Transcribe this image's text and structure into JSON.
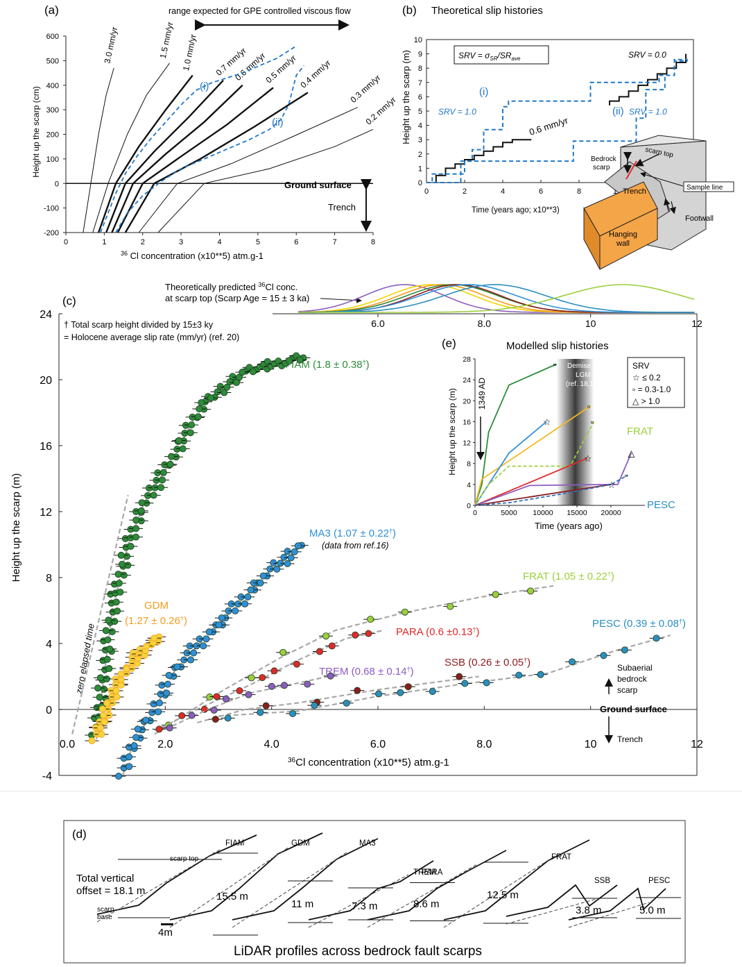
{
  "colors": {
    "axis": "#222222",
    "dashed_blue": "#1f77c8",
    "guide_grey": "#9a9a9a",
    "FIAM": "#2e8b3a",
    "GDM": "#f59a1e",
    "MA3": "#2f8fd8",
    "FRAT": "#9ccf3a",
    "PARA": "#e02a2a",
    "TREM": "#8d5cc0",
    "SSB": "#8b1d1d",
    "PESC": "#2a8fc0",
    "block_orange": "#f4a548",
    "block_grey": "#d4d4d4"
  },
  "panel_a": {
    "label": "(a)",
    "header_text": "range expected for GPE controlled viscous flow",
    "ylabel": "Height up the scarp (cm)",
    "xlabel_pre": "36",
    "xlabel_main": " Cl concentration (x10**5) atm.g-1",
    "ground_label": "Ground surface",
    "trench_label": "Trench",
    "i_label": "(i)",
    "ii_label": "(ii)",
    "xticks": [
      0,
      1,
      2,
      3,
      4,
      5,
      6,
      7,
      8
    ],
    "yticks": [
      -200,
      -100,
      0,
      100,
      200,
      300,
      400,
      500,
      600
    ],
    "xlim": [
      0,
      8
    ],
    "ylim": [
      -200,
      600
    ],
    "rate_curves": [
      {
        "label": "3.0 mm/yr",
        "x": [
          0.45,
          0.65,
          0.85,
          1.05,
          1.25
        ],
        "y": [
          -200,
          0,
          200,
          360,
          470
        ],
        "bold": false
      },
      {
        "label": "1.5 mm/yr",
        "x": [
          0.7,
          1.1,
          1.6,
          2.1,
          2.7
        ],
        "y": [
          -200,
          0,
          200,
          360,
          490
        ],
        "bold": false
      },
      {
        "label": "1.0 mm/yr",
        "x": [
          0.85,
          1.3,
          1.9,
          2.6,
          3.3
        ],
        "y": [
          -200,
          0,
          150,
          300,
          440
        ],
        "bold": true
      },
      {
        "label": "0.7 mm/yr",
        "x": [
          1.05,
          1.55,
          2.3,
          3.2,
          4.1
        ],
        "y": [
          -200,
          0,
          130,
          270,
          420
        ],
        "bold": true
      },
      {
        "label": "0.6 mm/yr",
        "x": [
          1.2,
          1.75,
          2.6,
          3.6,
          4.6
        ],
        "y": [
          -200,
          0,
          120,
          250,
          400
        ],
        "bold": true
      },
      {
        "label": "0.5 mm/yr",
        "x": [
          1.35,
          2.0,
          3.0,
          4.2,
          5.4
        ],
        "y": [
          -200,
          0,
          110,
          240,
          390
        ],
        "bold": true
      },
      {
        "label": "0.4 mm/yr",
        "x": [
          1.55,
          2.3,
          3.5,
          4.9,
          6.3
        ],
        "y": [
          -200,
          0,
          100,
          230,
          370
        ],
        "bold": true
      },
      {
        "label": "0.3 mm/yr",
        "x": [
          1.9,
          2.9,
          4.3,
          5.9,
          7.6
        ],
        "y": [
          -200,
          0,
          80,
          190,
          310
        ],
        "bold": false
      },
      {
        "label": "0.2 mm/yr",
        "x": [
          2.4,
          3.6,
          5.3,
          7.0,
          8.0
        ],
        "y": [
          -200,
          0,
          60,
          150,
          220
        ],
        "bold": false
      }
    ],
    "dashed_i": {
      "x": [
        0.9,
        1.1,
        1.3,
        1.55,
        1.85,
        2.2,
        2.6,
        3.0,
        3.4,
        3.8,
        4.2,
        4.6,
        4.9,
        5.2,
        5.5,
        5.8,
        6.0
      ],
      "y": [
        -200,
        -120,
        -40,
        40,
        110,
        180,
        250,
        320,
        380,
        410,
        430,
        450,
        470,
        490,
        510,
        540,
        560
      ]
    },
    "dashed_ii": {
      "x": [
        1.3,
        1.6,
        2.0,
        2.5,
        3.0,
        3.6,
        4.2,
        4.8,
        5.3,
        5.6,
        5.8,
        5.9,
        6.0,
        6.2
      ],
      "y": [
        -200,
        -120,
        -50,
        10,
        60,
        100,
        140,
        180,
        220,
        260,
        320,
        380,
        440,
        480
      ]
    }
  },
  "panel_b": {
    "label": "(b)",
    "title": "Theoretical slip histories",
    "formula_pre": "SRV = σ",
    "formula_sub1": "SR",
    "formula_mid": "/SR",
    "formula_sub2": "ave",
    "srv_top_label": "SRV = 0.0",
    "srv_i_label": "SRV = 1.0",
    "srv_ii_label": "SRV = 1.0",
    "i_label": "(i)",
    "ii_label": "(ii)",
    "rate_label": "0.6 mm/yr",
    "ylabel": "Height up the scarp (m)",
    "xlabel": "Time (years ago; x10**3)",
    "xticks": [
      0,
      2,
      4,
      6,
      8,
      10
    ],
    "yticks": [
      0,
      1,
      2,
      3,
      4,
      5,
      6,
      7,
      8,
      9,
      10
    ],
    "xlim": [
      0,
      14
    ],
    "ylim": [
      0,
      10
    ],
    "black_step_a": {
      "x": [
        0.5,
        0.5,
        1.0,
        1.0,
        1.5,
        1.5,
        2.0,
        2.0,
        2.5,
        2.5,
        3.0,
        3.0,
        3.5,
        3.5,
        4.0,
        4.0,
        4.5,
        4.5,
        5.0,
        5.0,
        5.5,
        5.5
      ],
      "y": [
        0,
        0.5,
        0.5,
        1.0,
        1.0,
        1.3,
        1.3,
        1.6,
        1.6,
        1.9,
        1.9,
        2.2,
        2.2,
        2.5,
        2.5,
        2.8,
        2.8,
        3.0,
        3.0,
        3.0,
        3.0,
        3.0
      ]
    },
    "black_step_b": {
      "x": [
        9.6,
        9.6,
        10.1,
        10.1,
        10.6,
        10.6,
        11.1,
        11.1,
        11.6,
        11.6,
        12.1,
        12.1,
        12.6,
        12.6,
        13.1,
        13.1,
        13.6,
        13.6
      ],
      "y": [
        5.4,
        5.7,
        5.7,
        6.0,
        6.0,
        6.4,
        6.4,
        6.8,
        6.8,
        7.2,
        7.2,
        7.6,
        7.6,
        8.0,
        8.0,
        8.4,
        8.4,
        9.0
      ]
    },
    "blue_step_i": {
      "x": [
        0,
        0.3,
        0.3,
        2.0,
        2.0,
        2.4,
        2.4,
        3.0,
        3.0,
        4.0,
        4.0,
        4.3,
        4.3,
        8.6,
        8.6,
        12.2,
        12.2,
        13.0,
        13.0,
        13.7
      ],
      "y": [
        0,
        0,
        0.6,
        0.6,
        1.5,
        1.5,
        2.3,
        2.3,
        3.7,
        3.7,
        5.3,
        5.3,
        5.7,
        5.7,
        7.0,
        7.0,
        7.5,
        7.5,
        8.5,
        8.5
      ]
    },
    "blue_step_ii": {
      "x": [
        0,
        1.8,
        1.8,
        4.3,
        4.3,
        7.7,
        7.7,
        11.0,
        11.0,
        11.5,
        11.5,
        12.5,
        12.5,
        13.0,
        13.0,
        13.7
      ],
      "y": [
        0,
        0,
        1.5,
        1.5,
        1.5,
        1.5,
        2.9,
        2.9,
        4.5,
        4.5,
        6.5,
        6.5,
        7.5,
        7.5,
        8.6,
        8.6
      ]
    },
    "block_labels": {
      "bedrock": "Bedrock",
      "scarp": "scarp",
      "scarp_top": "scarp top",
      "trench": "Trench",
      "sample_line": "Sample line",
      "footwall": "Footwall",
      "hanging": "Hanging",
      "wall": "wall"
    }
  },
  "panel_c": {
    "label": "(c)",
    "curves_caption": "Theoretically predicted",
    "curves_caption_sup": "36",
    "curves_caption_rest": "Cl conc.",
    "curves_caption2": "at scarp top (Scarp Age = 15 ± 3 ka)",
    "note1": "† Total scarp height divided by 15±3 ky",
    "note2": "= Holocene average slip rate (mm/yr) (ref. 20)",
    "ylabel": "Height up the scarp (m)",
    "xlabel_pre": "36",
    "xlabel_main": "Cl concentration (x10**5) atm.g-1",
    "zero_label": "zero elapsed time",
    "ground_label": "Ground surface",
    "trench_label": "Trench",
    "subaerial_1": "Subaerial",
    "subaerial_2": "bedrock",
    "subaerial_3": "scarp",
    "ma3_note": "(data from ref.16)",
    "xticks_bottom": [
      "0.0",
      "2.0",
      "4.0",
      "6.0",
      "8.0",
      "10",
      "12"
    ],
    "xticks_top": [
      "6.0",
      "8.0",
      "10",
      "12"
    ],
    "yticks": [
      -4,
      0,
      4,
      8,
      12,
      16,
      20,
      24
    ],
    "xlim": [
      0,
      12
    ],
    "ylim": [
      -4,
      24
    ],
    "site_labels": [
      {
        "key": "FIAM",
        "text": "FIAM (1.8 ± 0.38",
        "dagger": "†",
        "close": ")"
      },
      {
        "key": "GDM",
        "text": "GDM",
        "dagger": "",
        "close": ""
      },
      {
        "key": "GDM2",
        "text": "(1.27 ± 0.26",
        "dagger": "†",
        "close": ")"
      },
      {
        "key": "MA3",
        "text": "MA3 (1.07 ± 0.22",
        "dagger": "†",
        "close": ")"
      },
      {
        "key": "FRAT",
        "text": "FRAT (1.05 ± 0.22",
        "dagger": "†",
        "close": ")"
      },
      {
        "key": "PARA",
        "text": "PARA (0.6 ±0.13",
        "dagger": "†",
        "close": ")"
      },
      {
        "key": "PESC",
        "text": "PESC (0.39 ± 0.08",
        "dagger": "†",
        "close": ")"
      },
      {
        "key": "TREM",
        "text": "TREM (0.68 ± 0.14",
        "dagger": "†",
        "close": ")"
      },
      {
        "key": "SSB",
        "text": "SSB (0.26 ± 0.05",
        "dagger": "†",
        "close": ")"
      }
    ],
    "gaussians": [
      {
        "color": "#8d5cc0",
        "mu": 6.5,
        "sd": 0.75
      },
      {
        "color": "#f2d400",
        "mu": 7.0,
        "sd": 0.8
      },
      {
        "color": "#f59a1e",
        "mu": 7.2,
        "sd": 0.8
      },
      {
        "color": "#2e8b3a",
        "mu": 7.4,
        "sd": 0.85
      },
      {
        "color": "#8b1d1d",
        "mu": 7.5,
        "sd": 0.8
      },
      {
        "color": "#2f8fd8",
        "mu": 7.7,
        "sd": 0.9
      },
      {
        "color": "#2a8fc0",
        "mu": 8.2,
        "sd": 0.95
      },
      {
        "color": "#9ccf3a",
        "mu": 10.6,
        "sd": 1.1
      }
    ]
  },
  "panel_e": {
    "label": "(e)",
    "title": "Modelled slip histories",
    "lgm_1": "Demise of",
    "lgm_2": "LGM",
    "lgm_3": "(ref. 18,19)",
    "ad_label": "1349 AD",
    "legend_title": "SRV",
    "legend_star": "≤ 0.2",
    "legend_square": "= 0.3-1.0",
    "legend_triangle": "> 1.0",
    "frat_label": "FRAT",
    "pesc_label": "PESC",
    "ylabel": "Height up the scarp (m)",
    "xlabel": "Time (years ago)",
    "xticks": [
      0,
      5000,
      10000,
      15000,
      20000
    ],
    "yticks": [
      0,
      4,
      8,
      12,
      16,
      20,
      24,
      28
    ],
    "xlim": [
      0,
      25000
    ],
    "ylim": [
      0,
      28
    ],
    "lines": [
      {
        "color": "#2e8b3a",
        "dash": false,
        "x": [
          0,
          1000,
          2000,
          5000,
          12000
        ],
        "y": [
          0,
          4,
          14,
          23,
          27
        ],
        "end": "square"
      },
      {
        "color": "#f5b81e",
        "dash": false,
        "x": [
          0,
          1000,
          17000
        ],
        "y": [
          0,
          5,
          19
        ],
        "end": "square"
      },
      {
        "color": "#2f8fd8",
        "dash": false,
        "x": [
          0,
          2000,
          5000,
          10500
        ],
        "y": [
          0,
          4,
          10,
          16
        ],
        "end": "star"
      },
      {
        "color": "#9ccf3a",
        "dash": true,
        "x": [
          0,
          2000,
          5000,
          14000,
          17500
        ],
        "y": [
          0,
          4,
          7.5,
          7.5,
          16
        ],
        "end": "square"
      },
      {
        "color": "#e02a2a",
        "dash": false,
        "x": [
          0,
          16500
        ],
        "y": [
          0,
          9
        ],
        "end": "star"
      },
      {
        "color": "#8d5cc0",
        "dash": false,
        "x": [
          0,
          8000,
          20000,
          21000,
          23000
        ],
        "y": [
          0,
          3.8,
          4.0,
          4.0,
          10
        ],
        "end": "triangle"
      },
      {
        "color": "#8b1d1d",
        "dash": false,
        "x": [
          0,
          20000
        ],
        "y": [
          0,
          4
        ],
        "end": "star"
      },
      {
        "color": "#2a6fc0",
        "dash": true,
        "x": [
          0,
          5000,
          12000,
          20000,
          22500
        ],
        "y": [
          0,
          0.5,
          2,
          4,
          5.8
        ],
        "end": "square"
      }
    ]
  },
  "panel_d": {
    "label": "(d)",
    "total_1": "Total vertical",
    "total_2": "offset = 18.1 m",
    "scarp_top": "scarp top",
    "scarp_base_1": "scarp",
    "scarp_base_2": "base",
    "scale_label": "4m",
    "caption": "LiDAR profiles across bedrock fault scarps",
    "profiles": [
      {
        "name": "FIAM",
        "offset": ""
      },
      {
        "name": "GDM",
        "offset": "15.5 m"
      },
      {
        "name": "MA3",
        "offset": "11 m"
      },
      {
        "name": "PARA",
        "offset": "7.3 m"
      },
      {
        "name": "TREM",
        "offset": "8.6 m"
      },
      {
        "name": "FRAT",
        "offset": "12.5 m"
      },
      {
        "name": "SSB",
        "offset": "3.8 m"
      },
      {
        "name": "PESC",
        "offset": "5.0 m"
      }
    ]
  }
}
